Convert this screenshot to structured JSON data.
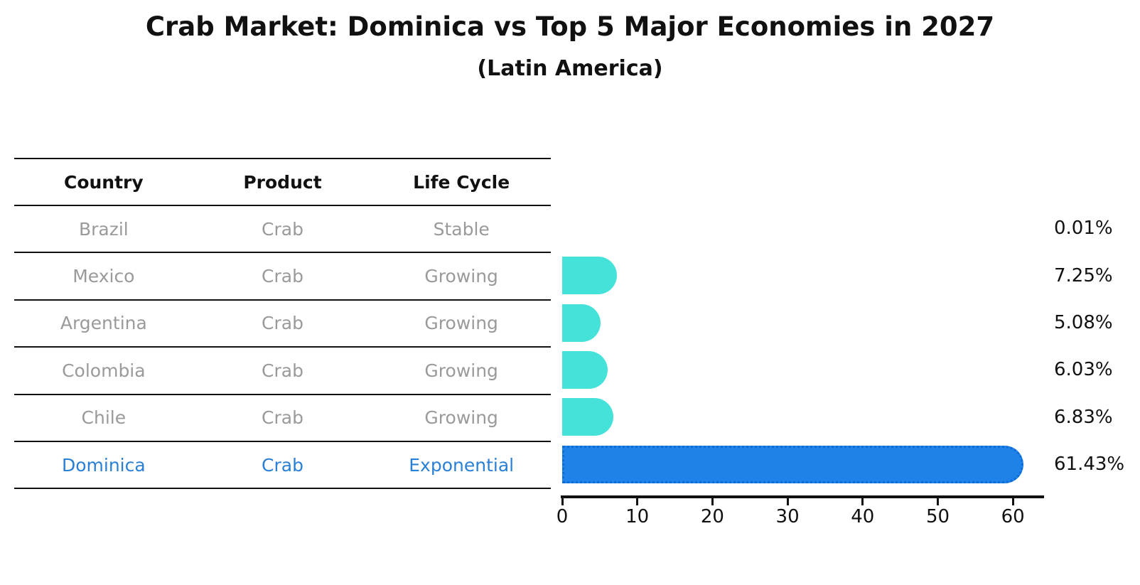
{
  "header": {
    "title": "Crab Market: Dominica vs Top 5 Major Economies in 2027",
    "subtitle": "(Latin America)"
  },
  "table": {
    "columns": [
      "Country",
      "Product",
      "Life Cycle"
    ],
    "rows": [
      {
        "country": "Brazil",
        "product": "Crab",
        "life_cycle": "Stable",
        "value_label": "0.01%",
        "highlight": false
      },
      {
        "country": "Mexico",
        "product": "Crab",
        "life_cycle": "Growing",
        "value_label": "7.25%",
        "highlight": false
      },
      {
        "country": "Argentina",
        "product": "Crab",
        "life_cycle": "Growing",
        "value_label": "5.08%",
        "highlight": false
      },
      {
        "country": "Colombia",
        "product": "Crab",
        "life_cycle": "Growing",
        "value_label": "6.03%",
        "highlight": false
      },
      {
        "country": "Chile",
        "product": "Crab",
        "life_cycle": "Growing",
        "value_label": "6.83%",
        "highlight": false
      },
      {
        "country": "Dominica",
        "product": "Crab",
        "life_cycle": "Exponential",
        "value_label": "61.43%",
        "highlight": true
      }
    ]
  },
  "chart_data": {
    "type": "bar",
    "orientation": "horizontal",
    "title": "Crab Market: Dominica vs Top 5 Major Economies in 2027",
    "subtitle": "(Latin America)",
    "categories": [
      "Brazil",
      "Mexico",
      "Argentina",
      "Colombia",
      "Chile",
      "Dominica"
    ],
    "values": [
      0.01,
      7.25,
      5.08,
      6.03,
      6.83,
      61.43
    ],
    "value_labels": [
      "0.01%",
      "7.25%",
      "5.08%",
      "6.03%",
      "6.83%",
      "61.43%"
    ],
    "xlabel": "",
    "ylabel": "",
    "xlim": [
      0,
      64.5
    ],
    "x_ticks": [
      0,
      10,
      20,
      30,
      40,
      50,
      60
    ],
    "grid": false,
    "legend": "none",
    "highlight_index": 5,
    "bar_color_default": "#45e2d9",
    "bar_color_highlight": "#1e82e8",
    "bar_edge_highlight": "#0e6ad4",
    "highlight_text_color": "#2a80d5",
    "text_color": "#111111",
    "muted_text_color": "#9a9a9a"
  }
}
